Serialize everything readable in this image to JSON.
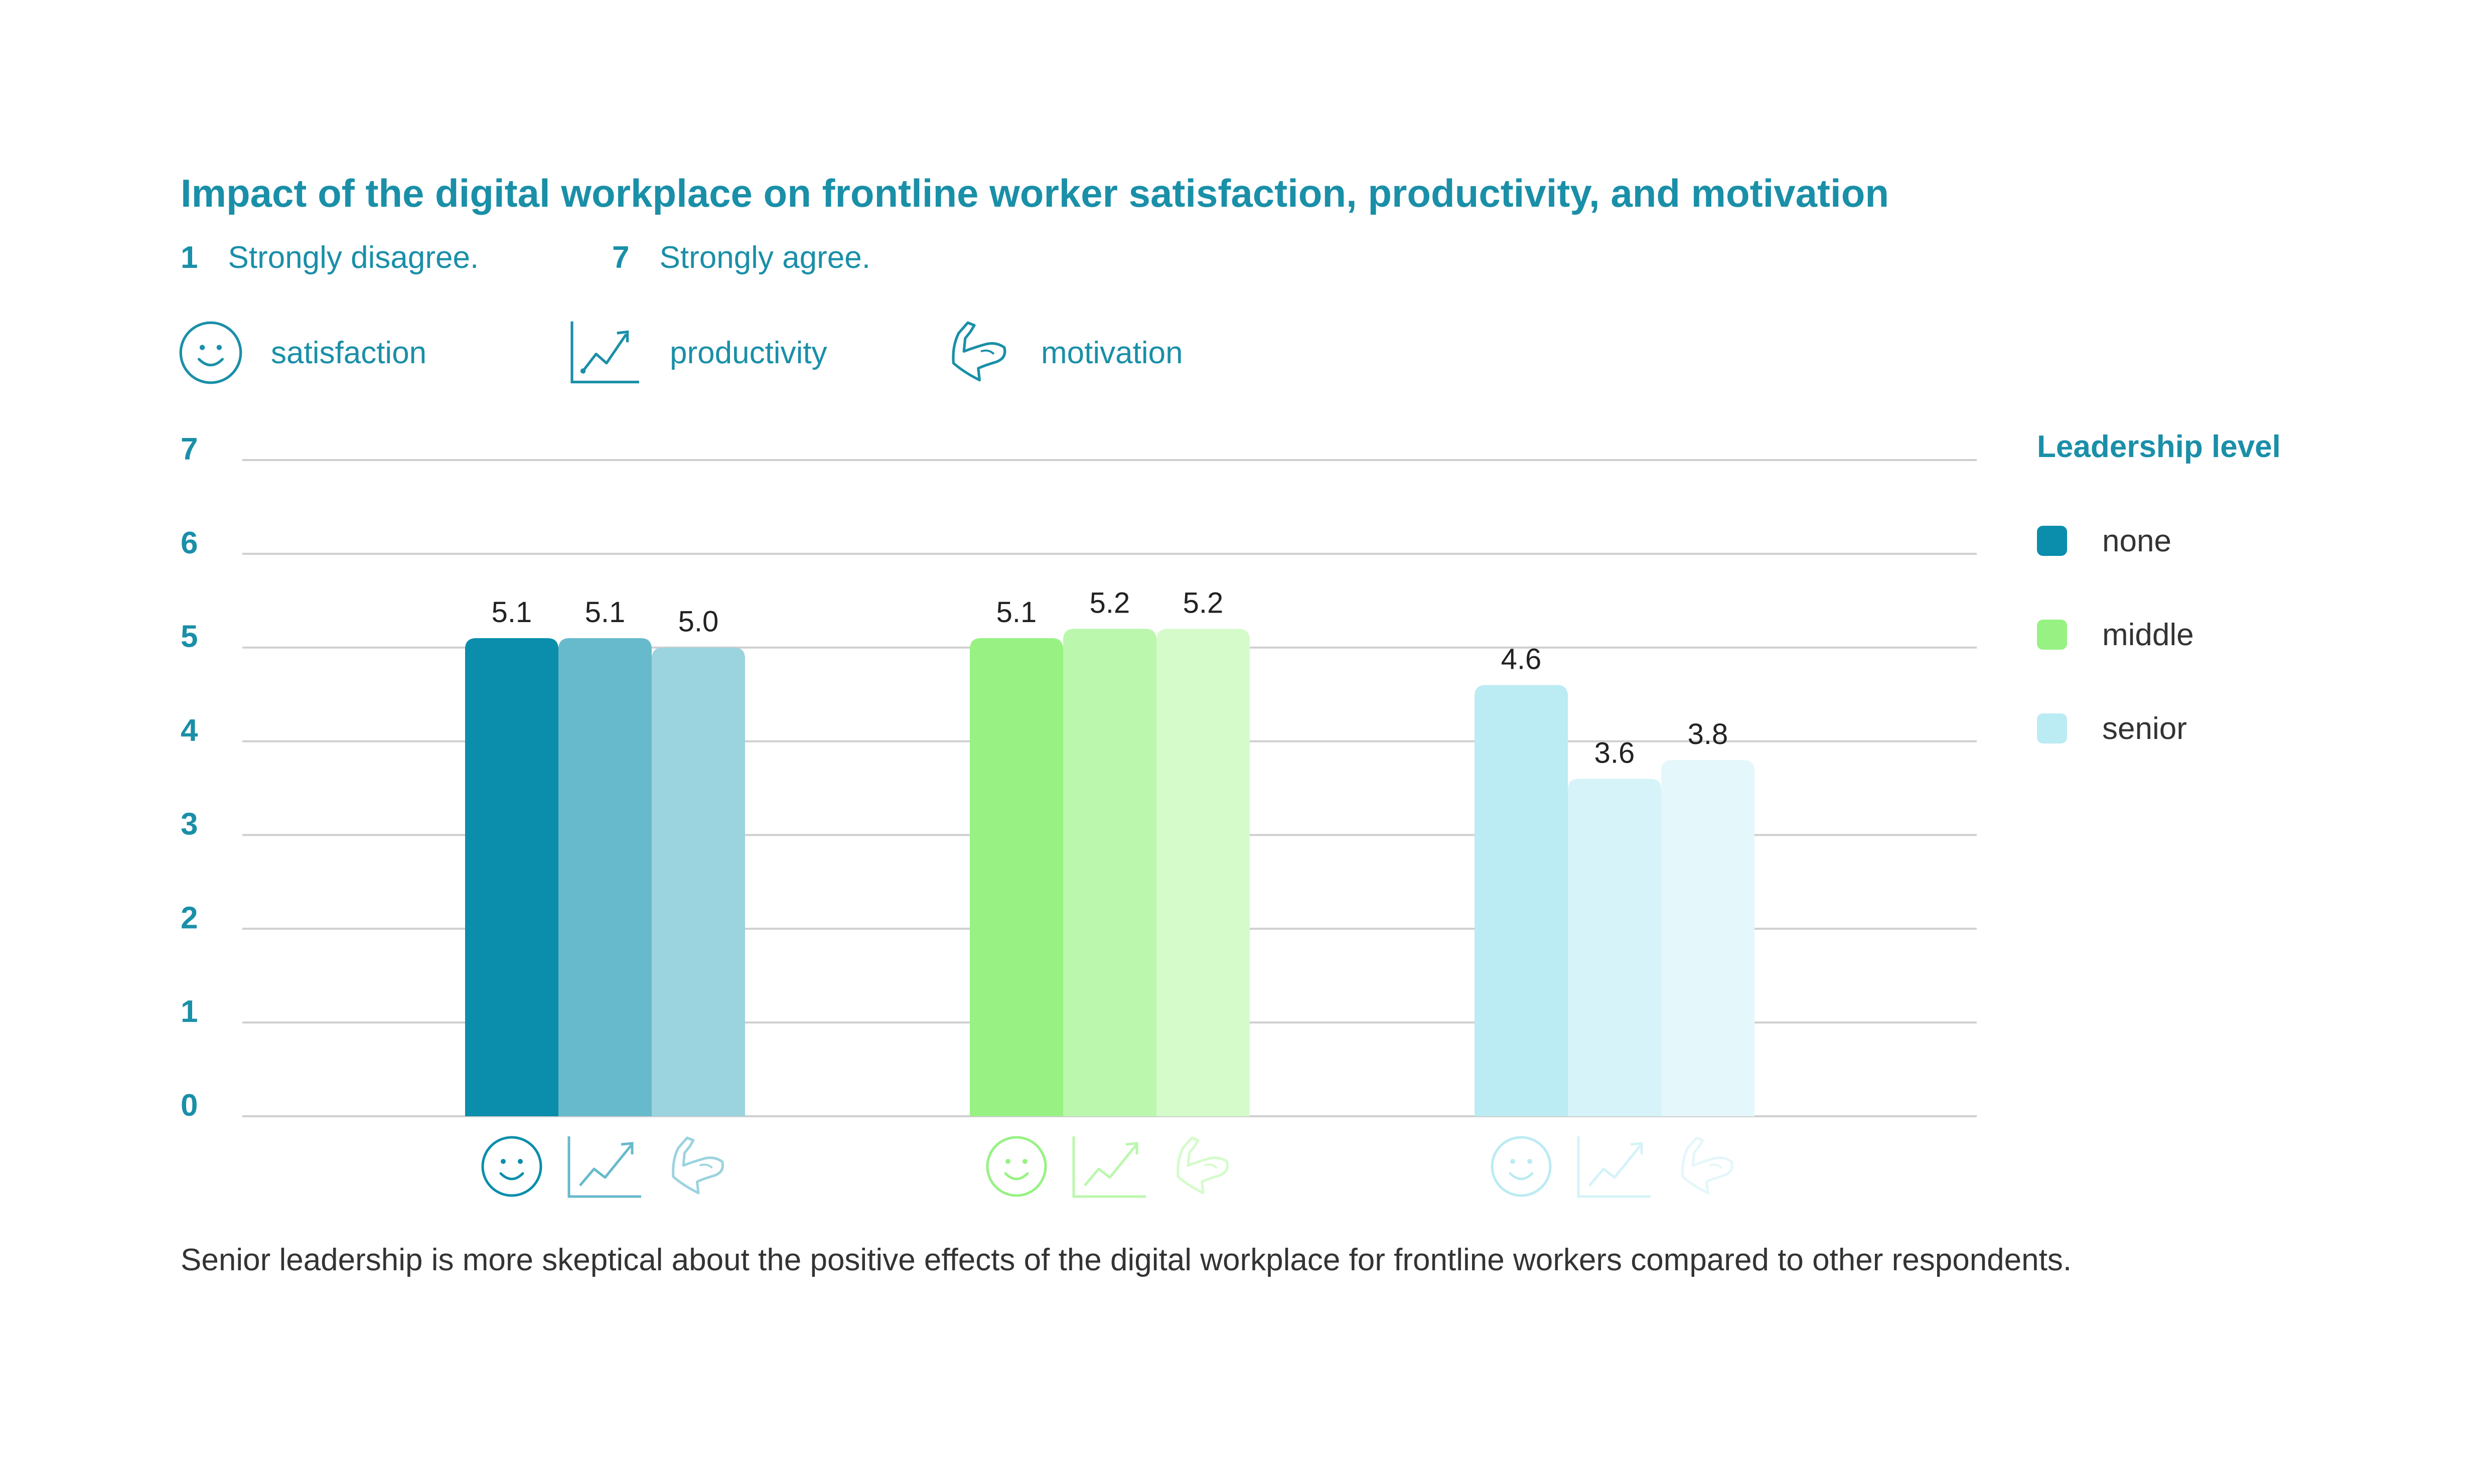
{
  "title": "Impact of the digital workplace on frontline worker satisfaction, productivity, and motivation",
  "scale": {
    "low_num": "1",
    "low_label": "Strongly disagree.",
    "high_num": "7",
    "high_label": "Strongly agree."
  },
  "icon_legend": [
    {
      "label": "satisfaction",
      "icon": "smiley-face-icon"
    },
    {
      "label": "productivity",
      "icon": "line-chart-icon"
    },
    {
      "label": "motivation",
      "icon": "flexed-arm-icon"
    }
  ],
  "legend": {
    "title": "Leadership level",
    "items": [
      {
        "label": "none",
        "color": "#0a8eab"
      },
      {
        "label": "middle",
        "color": "#97f283"
      },
      {
        "label": "senior",
        "color": "#bbebf3"
      }
    ]
  },
  "caption": "Senior leadership is more skeptical about the positive effects of the digital workplace for frontline workers compared to other respondents.",
  "chart_data": {
    "type": "bar",
    "ylim": [
      0,
      7
    ],
    "yticks": [
      0,
      1,
      2,
      3,
      4,
      5,
      6,
      7
    ],
    "grid": true,
    "legend_position": "right",
    "categories": [
      "satisfaction",
      "productivity",
      "motivation"
    ],
    "series": [
      {
        "name": "none",
        "values": [
          5.1,
          5.1,
          5.0
        ],
        "labels": [
          "5.1",
          "5.1",
          "5.0"
        ],
        "colors": [
          "#0a8eab",
          "#67bacb",
          "#9bd3de"
        ]
      },
      {
        "name": "middle",
        "values": [
          5.1,
          5.2,
          5.2
        ],
        "labels": [
          "5.1",
          "5.2",
          "5.2"
        ],
        "colors": [
          "#97f283",
          "#bbf7ad",
          "#d5fbcb"
        ]
      },
      {
        "name": "senior",
        "values": [
          4.6,
          3.6,
          3.8
        ],
        "labels": [
          "4.6",
          "3.6",
          "3.8"
        ],
        "colors": [
          "#bbebf3",
          "#d5f3f8",
          "#e4f7fa"
        ]
      }
    ]
  }
}
